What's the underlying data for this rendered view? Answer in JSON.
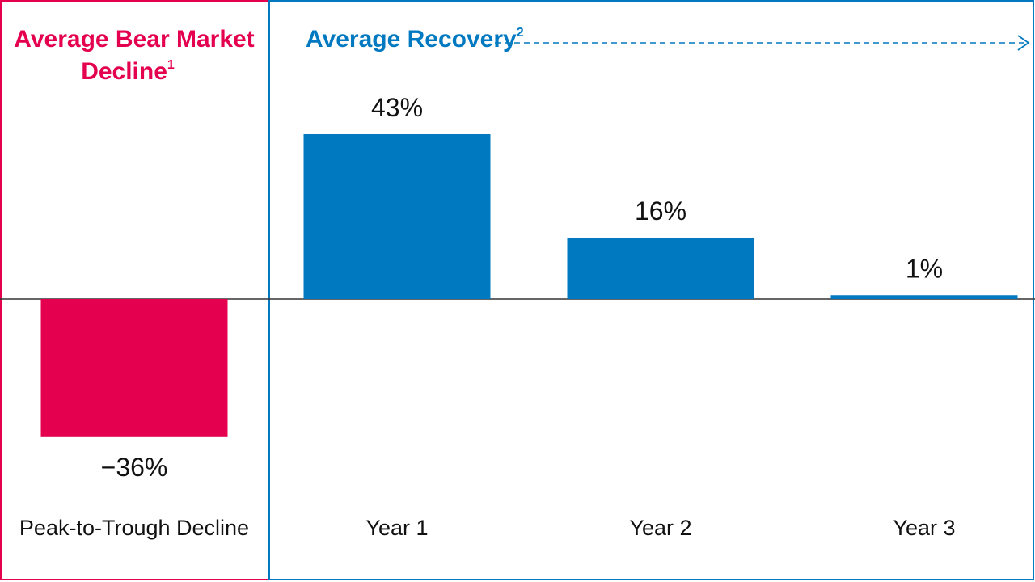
{
  "colors": {
    "decline": "#e4004f",
    "recovery": "#0079c1",
    "text": "#111111",
    "axis": "#333333"
  },
  "panels": {
    "decline": {
      "title_line1": "Average Bear Market",
      "title_line2": "Decline",
      "title_sup": "1"
    },
    "recovery": {
      "title": "Average Recovery",
      "title_sup": "2"
    }
  },
  "chart_data": {
    "type": "bar",
    "categories": [
      "Peak-to-Trough Decline",
      "Year 1",
      "Year 2",
      "Year 3"
    ],
    "values": [
      -36,
      43,
      16,
      1
    ],
    "value_labels": [
      "−36%",
      "43%",
      "16%",
      "1%"
    ],
    "unit": "%",
    "ylim": [
      -43,
      58
    ],
    "grid": false,
    "legend": "none",
    "series_colors": [
      "decline",
      "recovery",
      "recovery",
      "recovery"
    ]
  }
}
